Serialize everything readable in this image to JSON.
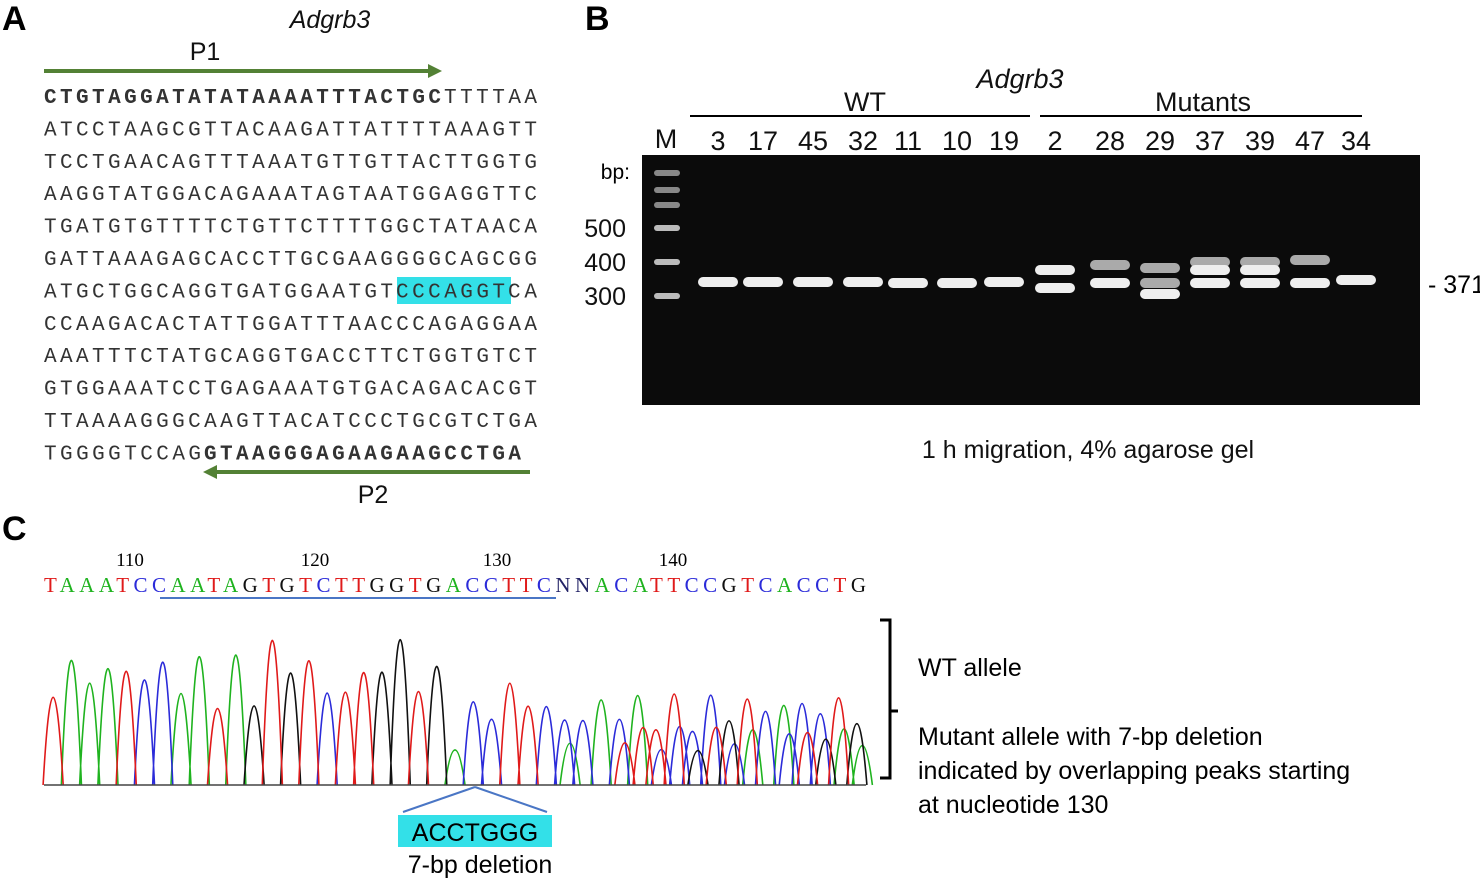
{
  "panel_a": {
    "label": "A",
    "gene": "Adgrb3",
    "primer_forward": "P1",
    "primer_reverse": "P2",
    "sequence": [
      [
        "CTGTAGGATATATAAAATTTACTGC",
        "TTTTAA"
      ],
      [
        "ATCCTAAGCGTTACAAGATTATTTTAAAGTT"
      ],
      [
        "TCCTGAACAGTTTAAATGTTGTTACTTGGTG"
      ],
      [
        "AAGGTATGGACAGAAATAGTAATGGAGGTTC"
      ],
      [
        "TGATGTGTTTTCTGTTCTTTTGGCTATAACA"
      ],
      [
        "GATTAAAGAGCACCTTGCGAAGGGGCAGCGG"
      ],
      [
        "ATGCTGGCAGGTGATGGAATGT",
        "CCCAGGT",
        "CA"
      ],
      [
        "CCAAGACACTATTGGATTTAACCCAGAGGAA"
      ],
      [
        "AAATTTCTATGCAGGTGACCTTCTGGTGTCT"
      ],
      [
        "GTGGAAATCCTGAGAAATGTGACAGACACGT"
      ],
      [
        "TTAAAAGGGCAAGTTACATCCCTGCGTCTGA"
      ],
      [
        "TGGGGTCCAG",
        "GTAAGGGAGAAGAAGCCTGA"
      ]
    ]
  },
  "panel_b": {
    "label": "B",
    "gene": "Adgrb3",
    "wt_label": "WT",
    "mutant_label": "Mutants",
    "marker_lane": "M",
    "wt_lanes": [
      3,
      17,
      45,
      32,
      11,
      10,
      19
    ],
    "mutant_lanes": [
      2,
      28,
      29,
      37,
      39,
      47,
      34
    ],
    "size_unit": "bp:",
    "marker_sizes": [
      500,
      400,
      300
    ],
    "band_size": "- 371",
    "caption": "1 h migration, 4% agarose gel"
  },
  "panel_c": {
    "label": "C",
    "positions": [
      110,
      120,
      130,
      140
    ],
    "sequence": "TAAATCCAATAGTGTCTTGGTGACCTTCNNACATTCCGTCACCTG",
    "wt_allele": "WT allele",
    "mutant_text": [
      "Mutant allele with 7-bp deletion",
      "indicated by overlapping peaks starting",
      "at nucleotide 130"
    ],
    "deleted_sequence": "ACCTGGG",
    "deletion_label": "7-bp deletion"
  }
}
